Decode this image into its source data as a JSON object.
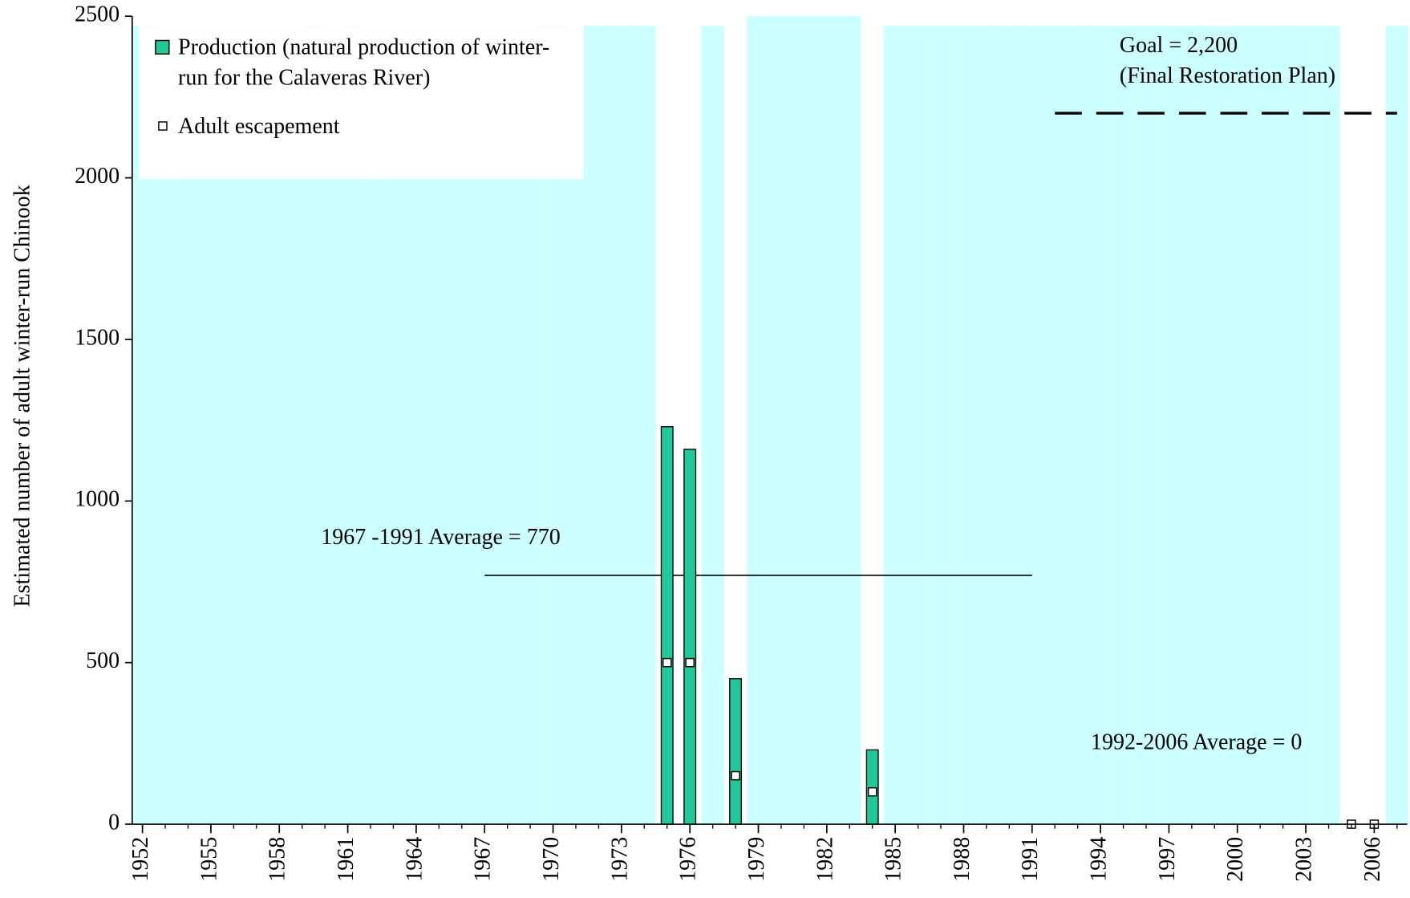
{
  "chart_data": {
    "type": "bar",
    "y_label": "Estimated number of adult winter-run Chinook",
    "x": [
      1952,
      1953,
      1954,
      1955,
      1956,
      1957,
      1958,
      1959,
      1960,
      1961,
      1962,
      1963,
      1964,
      1965,
      1966,
      1967,
      1968,
      1969,
      1970,
      1971,
      1972,
      1973,
      1974,
      1975,
      1976,
      1977,
      1978,
      1979,
      1980,
      1981,
      1982,
      1983,
      1984,
      1985,
      1986,
      1987,
      1988,
      1989,
      1990,
      1991,
      1992,
      1993,
      1994,
      1995,
      1996,
      1997,
      1998,
      1999,
      2000,
      2001,
      2002,
      2003,
      2004,
      2005,
      2006,
      2007
    ],
    "xlim": [
      1951.55,
      2007.45
    ],
    "xticks": [
      1952,
      1955,
      1958,
      1961,
      1964,
      1967,
      1970,
      1973,
      1976,
      1979,
      1982,
      1985,
      1988,
      1991,
      1994,
      1997,
      2000,
      2003,
      2006
    ],
    "ylim": [
      0,
      2500
    ],
    "yticks": [
      0,
      500,
      1000,
      1500,
      2000,
      2500
    ],
    "shading": {
      "color": "#ccffff",
      "values": [
        2470,
        2470,
        2470,
        2470,
        2470,
        2470,
        2470,
        2470,
        2470,
        2470,
        2470,
        2470,
        2470,
        2470,
        2470,
        2470,
        2470,
        2470,
        2470,
        2470,
        2470,
        2470,
        2470,
        null,
        null,
        2470,
        null,
        2500,
        2500,
        2500,
        2500,
        2500,
        null,
        2470,
        2470,
        2470,
        2470,
        2470,
        2470,
        2470,
        2470,
        2470,
        2470,
        2470,
        2470,
        2470,
        2470,
        2470,
        2470,
        2470,
        2470,
        2470,
        2470,
        null,
        null,
        2470
      ]
    },
    "series": [
      {
        "name": "Production (natural production of winter-run for the Calaveras River)",
        "kind": "bar",
        "color": "#1fc99a",
        "values": [
          null,
          null,
          null,
          null,
          null,
          null,
          null,
          null,
          null,
          null,
          null,
          null,
          null,
          null,
          null,
          null,
          null,
          null,
          null,
          null,
          null,
          null,
          null,
          1230,
          1160,
          null,
          450,
          null,
          null,
          null,
          null,
          null,
          230,
          null,
          null,
          null,
          null,
          null,
          null,
          null,
          null,
          null,
          null,
          null,
          null,
          null,
          null,
          null,
          null,
          null,
          null,
          null,
          null,
          null,
          null,
          null
        ]
      },
      {
        "name": "Adult escapement",
        "kind": "marker",
        "color": "#ffffff",
        "values": [
          null,
          null,
          null,
          null,
          null,
          null,
          null,
          null,
          null,
          null,
          null,
          null,
          null,
          null,
          null,
          null,
          null,
          null,
          null,
          null,
          null,
          null,
          null,
          500,
          500,
          null,
          150,
          null,
          null,
          null,
          null,
          null,
          100,
          null,
          null,
          null,
          null,
          null,
          null,
          null,
          null,
          null,
          null,
          null,
          null,
          null,
          null,
          null,
          null,
          null,
          null,
          null,
          null,
          0,
          0,
          null
        ]
      }
    ],
    "reference_lines": [
      {
        "value": 770,
        "from": 1967,
        "to": 1991,
        "style": "solid"
      },
      {
        "value": 2200,
        "from": 1992,
        "to": 2007,
        "style": "dashed"
      }
    ],
    "annotations": [
      "1967 -1991 Average = 770",
      "1992-2006 Average = 0",
      "Goal = 2,200",
      "(Final Restoration Plan)"
    ],
    "legend": "upper left"
  }
}
